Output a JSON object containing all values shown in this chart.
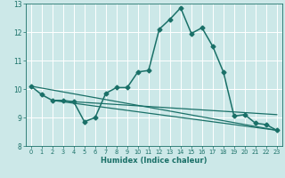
{
  "xlabel": "Humidex (Indice chaleur)",
  "xlim": [
    -0.5,
    23.5
  ],
  "ylim": [
    8,
    13
  ],
  "yticks": [
    8,
    9,
    10,
    11,
    12,
    13
  ],
  "xticks": [
    0,
    1,
    2,
    3,
    4,
    5,
    6,
    7,
    8,
    9,
    10,
    11,
    12,
    13,
    14,
    15,
    16,
    17,
    18,
    19,
    20,
    21,
    22,
    23
  ],
  "bg_color": "#cce8e8",
  "line_color": "#1a7068",
  "grid_color": "#b0d8d8",
  "lines": [
    {
      "x": [
        0,
        1,
        2,
        3,
        4,
        5,
        6,
        7,
        8,
        9,
        10,
        11,
        12,
        13,
        14,
        15,
        16,
        17,
        18,
        19,
        20,
        21,
        22,
        23
      ],
      "y": [
        10.1,
        9.8,
        9.6,
        9.6,
        9.55,
        8.85,
        9.0,
        9.85,
        10.05,
        10.05,
        10.6,
        10.65,
        12.1,
        12.45,
        12.85,
        11.95,
        12.15,
        11.5,
        10.6,
        9.05,
        9.1,
        8.8,
        8.75,
        8.55
      ],
      "marker": "D",
      "markersize": 2.5,
      "linewidth": 1.1,
      "has_marker": true
    },
    {
      "x": [
        0,
        23
      ],
      "y": [
        10.1,
        8.55
      ],
      "marker": null,
      "markersize": 0,
      "linewidth": 0.9,
      "has_marker": false
    },
    {
      "x": [
        2,
        23
      ],
      "y": [
        9.6,
        8.55
      ],
      "marker": null,
      "markersize": 0,
      "linewidth": 0.9,
      "has_marker": false
    },
    {
      "x": [
        2,
        23
      ],
      "y": [
        9.6,
        9.1
      ],
      "marker": null,
      "markersize": 0,
      "linewidth": 0.9,
      "has_marker": false
    }
  ]
}
